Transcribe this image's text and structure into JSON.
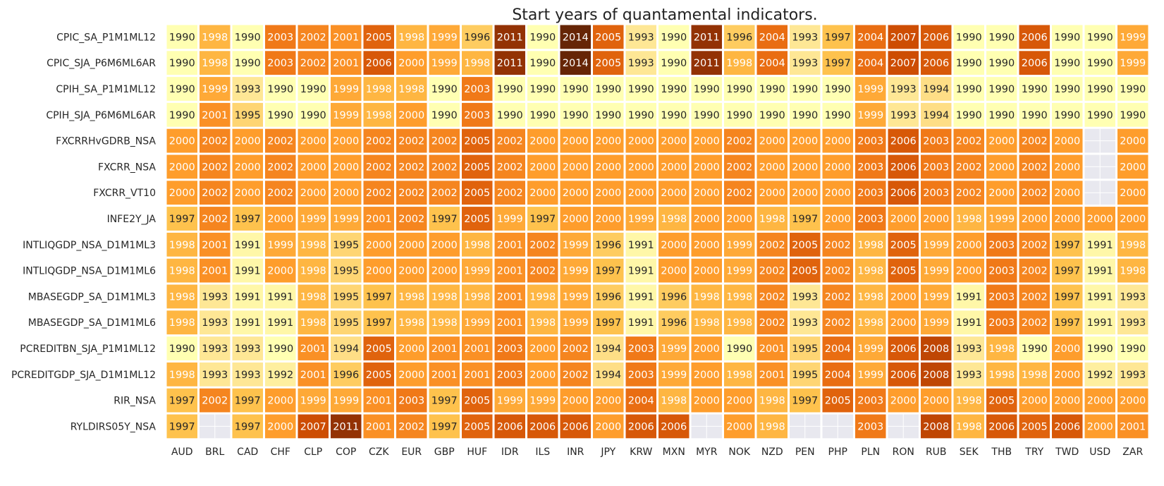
{
  "chart_data": {
    "type": "heatmap",
    "title": "Start years of quantamental indicators.",
    "xlabel": "",
    "ylabel": "",
    "columns": [
      "AUD",
      "BRL",
      "CAD",
      "CHF",
      "CLP",
      "COP",
      "CZK",
      "EUR",
      "GBP",
      "HUF",
      "IDR",
      "ILS",
      "INR",
      "JPY",
      "KRW",
      "MXN",
      "MYR",
      "NOK",
      "NZD",
      "PEN",
      "PHP",
      "PLN",
      "RON",
      "RUB",
      "SEK",
      "THB",
      "TRY",
      "TWD",
      "USD",
      "ZAR"
    ],
    "rows": [
      {
        "name": "CPIC_SA_P1M1ML12",
        "values": [
          1990,
          1998,
          1990,
          2003,
          2002,
          2001,
          2005,
          1998,
          1999,
          1996,
          2011,
          1990,
          2014,
          2005,
          1993,
          1990,
          2011,
          1996,
          2004,
          1993,
          1997,
          2004,
          2007,
          2006,
          1990,
          1990,
          2006,
          1990,
          1990,
          1999
        ]
      },
      {
        "name": "CPIC_SJA_P6M6ML6AR",
        "values": [
          1990,
          1998,
          1990,
          2003,
          2002,
          2001,
          2006,
          2000,
          1999,
          1998,
          2011,
          1990,
          2014,
          2005,
          1993,
          1990,
          2011,
          1998,
          2004,
          1993,
          1997,
          2004,
          2007,
          2006,
          1990,
          1990,
          2006,
          1990,
          1990,
          1999
        ]
      },
      {
        "name": "CPIH_SA_P1M1ML12",
        "values": [
          1990,
          1999,
          1993,
          1990,
          1990,
          1999,
          1998,
          1998,
          1990,
          2003,
          1990,
          1990,
          1990,
          1990,
          1990,
          1990,
          1990,
          1990,
          1990,
          1990,
          1990,
          1999,
          1993,
          1994,
          1990,
          1990,
          1990,
          1990,
          1990,
          1990
        ]
      },
      {
        "name": "CPIH_SJA_P6M6ML6AR",
        "values": [
          1990,
          2001,
          1995,
          1990,
          1990,
          1999,
          1998,
          2000,
          1990,
          2003,
          1990,
          1990,
          1990,
          1990,
          1990,
          1990,
          1990,
          1990,
          1990,
          1990,
          1990,
          1999,
          1993,
          1994,
          1990,
          1990,
          1990,
          1990,
          1990,
          1990
        ]
      },
      {
        "name": "FXCRRHvGDRB_NSA",
        "values": [
          2000,
          2002,
          2000,
          2002,
          2000,
          2000,
          2002,
          2002,
          2002,
          2005,
          2002,
          2000,
          2000,
          2000,
          2000,
          2000,
          2000,
          2002,
          2000,
          2000,
          2000,
          2003,
          2006,
          2003,
          2002,
          2000,
          2002,
          2000,
          null,
          2000
        ]
      },
      {
        "name": "FXCRR_NSA",
        "values": [
          2000,
          2002,
          2000,
          2002,
          2000,
          2000,
          2002,
          2002,
          2002,
          2005,
          2002,
          2000,
          2000,
          2000,
          2000,
          2000,
          2000,
          2002,
          2000,
          2000,
          2000,
          2003,
          2006,
          2003,
          2002,
          2000,
          2002,
          2000,
          null,
          2000
        ]
      },
      {
        "name": "FXCRR_VT10",
        "values": [
          2000,
          2002,
          2000,
          2002,
          2000,
          2000,
          2002,
          2002,
          2002,
          2005,
          2002,
          2000,
          2000,
          2000,
          2000,
          2000,
          2000,
          2002,
          2000,
          2000,
          2000,
          2003,
          2006,
          2003,
          2002,
          2000,
          2002,
          2000,
          null,
          2000
        ]
      },
      {
        "name": "INFE2Y_JA",
        "values": [
          1997,
          2002,
          1997,
          2000,
          1999,
          1999,
          2001,
          2002,
          1997,
          2005,
          1999,
          1997,
          2000,
          2000,
          1999,
          1998,
          2000,
          2000,
          1998,
          1997,
          2000,
          2003,
          2000,
          2000,
          1998,
          1999,
          2000,
          2000,
          2000,
          2000
        ]
      },
      {
        "name": "INTLIQGDP_NSA_D1M1ML3",
        "values": [
          1998,
          2001,
          1991,
          1999,
          1998,
          1995,
          2000,
          2000,
          2000,
          1998,
          2001,
          2002,
          1999,
          1996,
          1991,
          2000,
          2000,
          1999,
          2002,
          2005,
          2002,
          1998,
          2005,
          1999,
          2000,
          2003,
          2002,
          1997,
          1991,
          1998
        ]
      },
      {
        "name": "INTLIQGDP_NSA_D1M1ML6",
        "values": [
          1998,
          2001,
          1991,
          2000,
          1998,
          1995,
          2000,
          2000,
          2000,
          1999,
          2001,
          2002,
          1999,
          1997,
          1991,
          2000,
          2000,
          1999,
          2002,
          2005,
          2002,
          1998,
          2005,
          1999,
          2000,
          2003,
          2002,
          1997,
          1991,
          1998
        ]
      },
      {
        "name": "MBASEGDP_SA_D1M1ML3",
        "values": [
          1998,
          1993,
          1991,
          1991,
          1998,
          1995,
          1997,
          1998,
          1998,
          1998,
          2001,
          1998,
          1999,
          1996,
          1991,
          1996,
          1998,
          1998,
          2002,
          1993,
          2002,
          1998,
          2000,
          1999,
          1991,
          2003,
          2002,
          1997,
          1991,
          1993
        ]
      },
      {
        "name": "MBASEGDP_SA_D1M1ML6",
        "values": [
          1998,
          1993,
          1991,
          1991,
          1998,
          1995,
          1997,
          1998,
          1998,
          1999,
          2001,
          1998,
          1999,
          1997,
          1991,
          1996,
          1998,
          1998,
          2002,
          1993,
          2002,
          1998,
          2000,
          1999,
          1991,
          2003,
          2002,
          1997,
          1991,
          1993
        ]
      },
      {
        "name": "PCREDITBN_SJA_P1M1ML12",
        "values": [
          1990,
          1993,
          1993,
          1990,
          2001,
          1994,
          2005,
          2000,
          2001,
          2001,
          2003,
          2000,
          2002,
          1994,
          2003,
          1999,
          2000,
          1990,
          2001,
          1995,
          2004,
          1999,
          2006,
          2008,
          1993,
          1998,
          1990,
          2000,
          1990,
          1990
        ]
      },
      {
        "name": "PCREDITGDP_SJA_D1M1ML12",
        "values": [
          1998,
          1993,
          1993,
          1992,
          2001,
          1996,
          2005,
          2000,
          2001,
          2001,
          2003,
          2000,
          2002,
          1994,
          2003,
          1999,
          2000,
          1998,
          2001,
          1995,
          2004,
          1999,
          2006,
          2008,
          1993,
          1998,
          1998,
          2000,
          1992,
          1993
        ]
      },
      {
        "name": "RIR_NSA",
        "values": [
          1997,
          2002,
          1997,
          2000,
          1999,
          1999,
          2001,
          2003,
          1997,
          2005,
          1999,
          1999,
          2000,
          2000,
          2004,
          1998,
          2000,
          2000,
          1998,
          1997,
          2005,
          2003,
          2000,
          2000,
          1998,
          2005,
          2000,
          2000,
          2000,
          2000
        ]
      },
      {
        "name": "RYLDIRS05Y_NSA",
        "values": [
          1997,
          null,
          1997,
          2000,
          2007,
          2011,
          2001,
          2002,
          1997,
          2005,
          2006,
          2006,
          2006,
          2000,
          2006,
          2006,
          null,
          2000,
          1998,
          null,
          null,
          2003,
          null,
          2008,
          1998,
          2006,
          2005,
          2006,
          2000,
          2001
        ]
      }
    ],
    "colormap": {
      "stops": [
        "#ffffb2",
        "#fee391",
        "#fec44f",
        "#fe9929",
        "#ec7014",
        "#cc4c02",
        "#993404",
        "#662506"
      ],
      "missing": "#e8e8ef",
      "grid_line": "#ffffff"
    },
    "vmin": 1990,
    "vmax": 2014
  }
}
